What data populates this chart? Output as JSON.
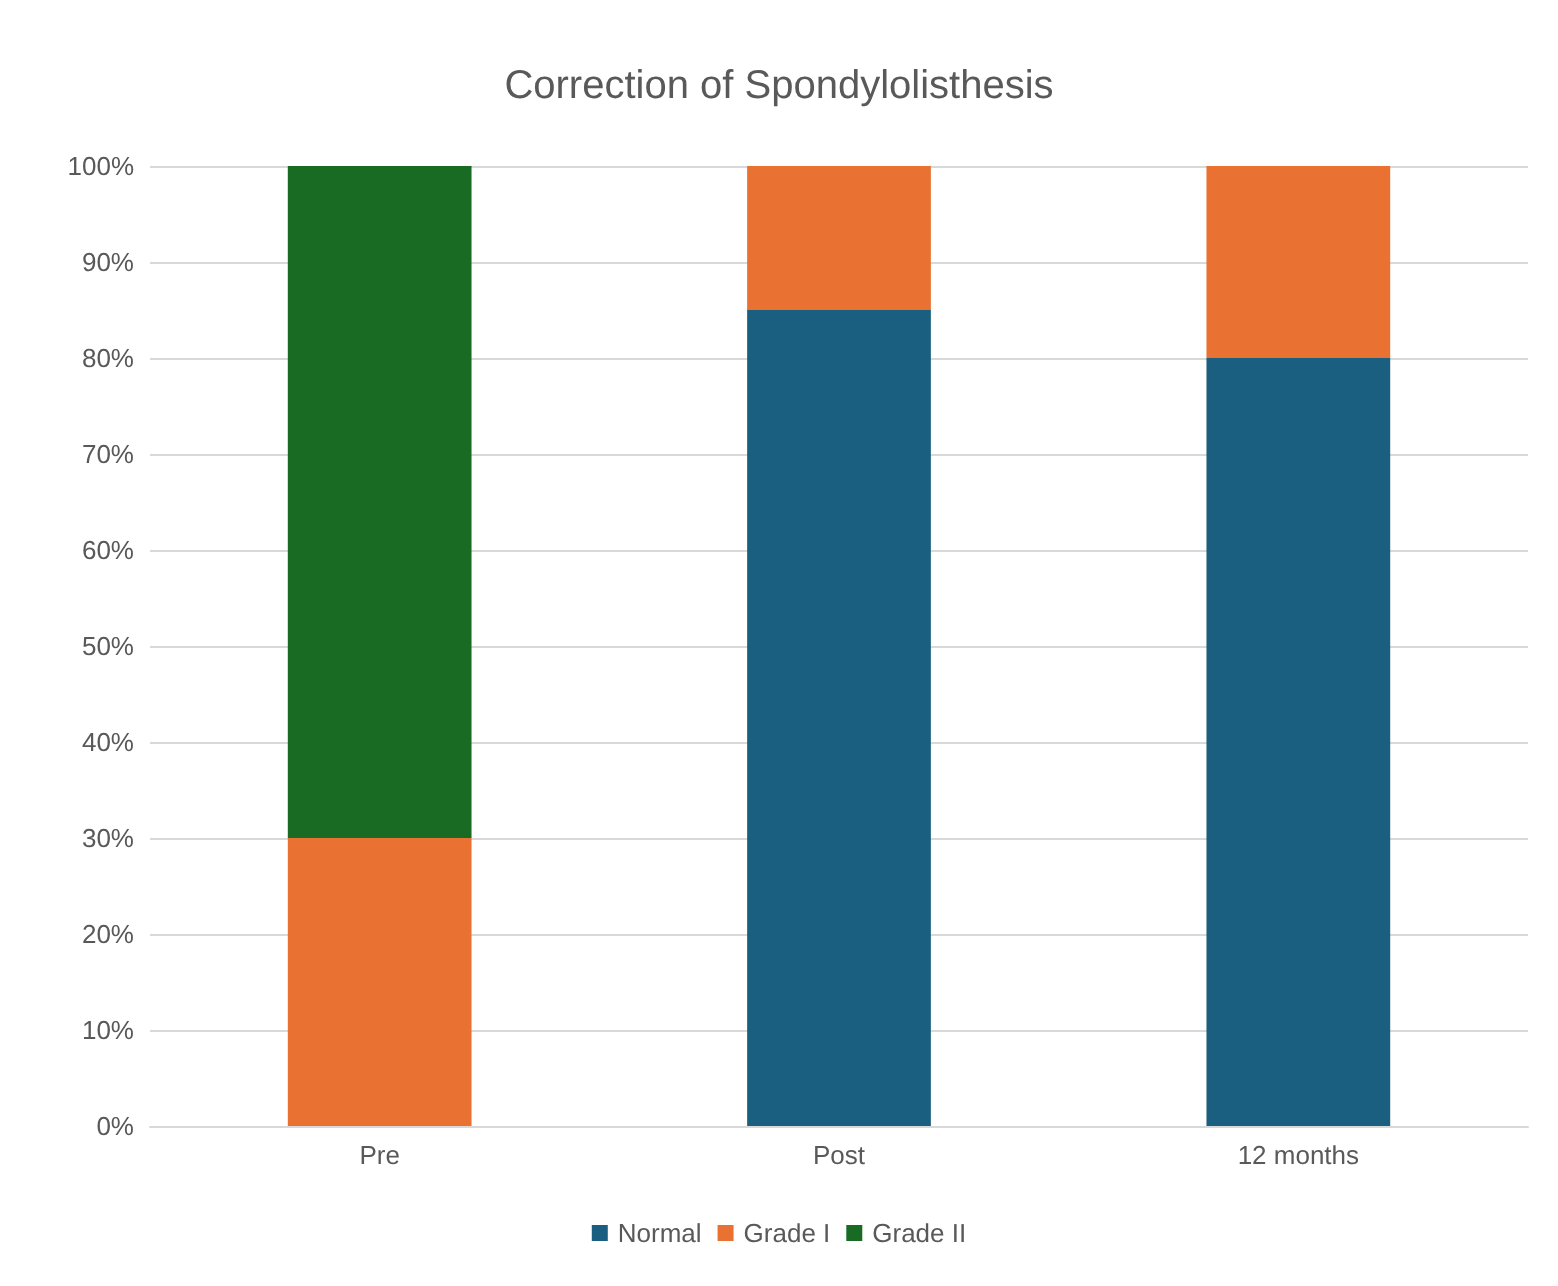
{
  "chart_data": {
    "type": "bar",
    "title": "Correction of Spondylolisthesis",
    "categories": [
      "Pre",
      "Post",
      "12 months"
    ],
    "stacked": true,
    "series": [
      {
        "name": "Normal",
        "color": "#1a5f7f",
        "values": [
          0,
          85,
          80
        ]
      },
      {
        "name": "Grade I",
        "color": "#e97132",
        "values": [
          30,
          15,
          20
        ]
      },
      {
        "name": "Grade II",
        "color": "#196b24",
        "values": [
          70,
          0,
          0
        ]
      }
    ],
    "ylim": [
      0,
      100
    ],
    "yticks": [
      {
        "value": 0,
        "label": "0%"
      },
      {
        "value": 10,
        "label": "10%"
      },
      {
        "value": 20,
        "label": "20%"
      },
      {
        "value": 30,
        "label": "30%"
      },
      {
        "value": 40,
        "label": "40%"
      },
      {
        "value": 50,
        "label": "50%"
      },
      {
        "value": 60,
        "label": "60%"
      },
      {
        "value": 70,
        "label": "70%"
      },
      {
        "value": 80,
        "label": "80%"
      },
      {
        "value": 90,
        "label": "90%"
      },
      {
        "value": 100,
        "label": "100%"
      }
    ],
    "grid": "y",
    "legend": "bottom"
  }
}
